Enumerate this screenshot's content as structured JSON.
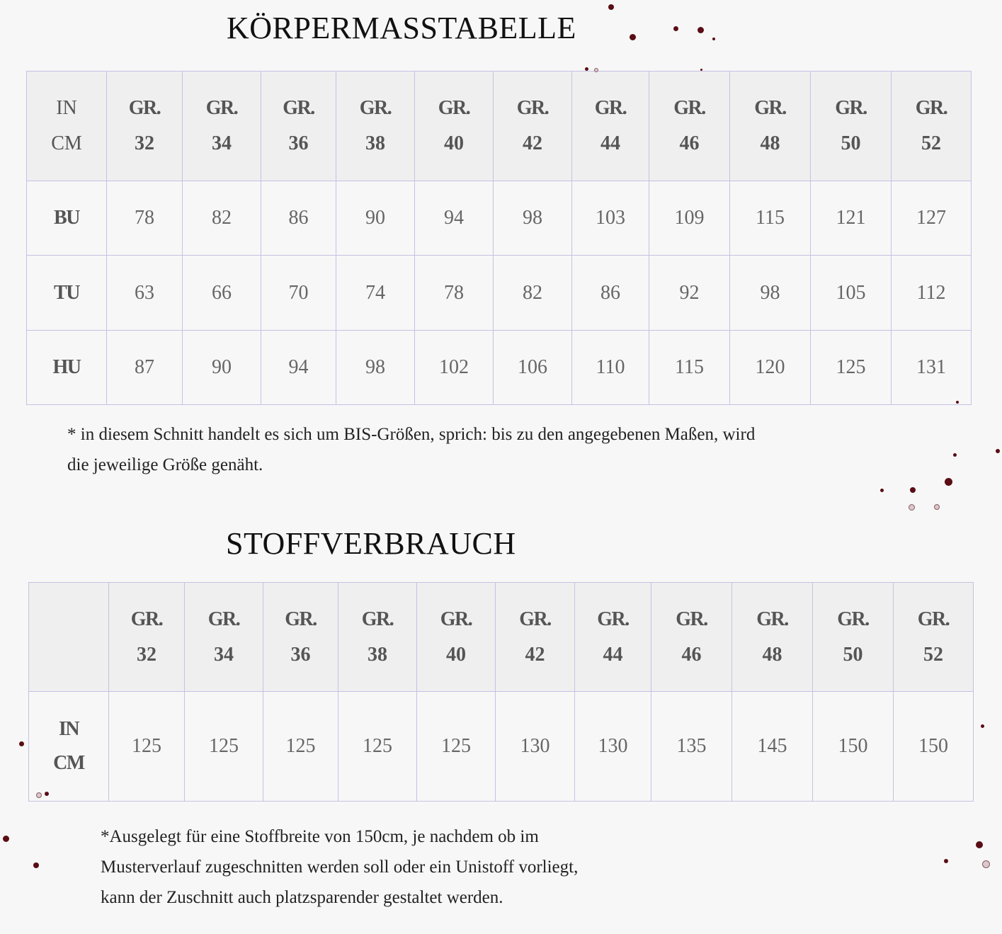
{
  "body_table": {
    "title": "KÖRPERMASSTABELLE",
    "corner": [
      "IN",
      "CM"
    ],
    "size_prefix": "GR.",
    "sizes": [
      "32",
      "34",
      "36",
      "38",
      "40",
      "42",
      "44",
      "46",
      "48",
      "50",
      "52"
    ],
    "rows": [
      {
        "label": "BU",
        "values": [
          "78",
          "82",
          "86",
          "90",
          "94",
          "98",
          "103",
          "109",
          "115",
          "121",
          "127"
        ]
      },
      {
        "label": "TU",
        "values": [
          "63",
          "66",
          "70",
          "74",
          "78",
          "82",
          "86",
          "92",
          "98",
          "105",
          "112"
        ]
      },
      {
        "label": "HU",
        "values": [
          "87",
          "90",
          "94",
          "98",
          "102",
          "106",
          "110",
          "115",
          "120",
          "125",
          "131"
        ]
      }
    ],
    "note_lines": [
      "* in diesem Schnitt handelt es sich um BIS-Größen, sprich: bis zu den angegebenen Maßen, wird",
      "die jeweilige Größe genäht."
    ]
  },
  "fabric_table": {
    "title": "STOFFVERBRAUCH",
    "corner": "",
    "size_prefix": "GR.",
    "sizes": [
      "32",
      "34",
      "36",
      "38",
      "40",
      "42",
      "44",
      "46",
      "48",
      "50",
      "52"
    ],
    "row": {
      "label": [
        "IN",
        "CM"
      ],
      "values": [
        "125",
        "125",
        "125",
        "125",
        "125",
        "130",
        "130",
        "135",
        "145",
        "150",
        "150"
      ]
    },
    "note_lines": [
      "*Ausgelegt für eine Stoffbreite von 150cm, je nachdem ob im",
      "Musterverlauf zugeschnitten werden soll oder ein Unistoff vorliegt,",
      "kann der Zuschnitt auch platzsparender gestaltet werden."
    ]
  },
  "colors": {
    "border": "#c6c1e3",
    "header_bg": "#efefef",
    "background": "#f7f7f7",
    "splatter": "#5a0d14"
  }
}
